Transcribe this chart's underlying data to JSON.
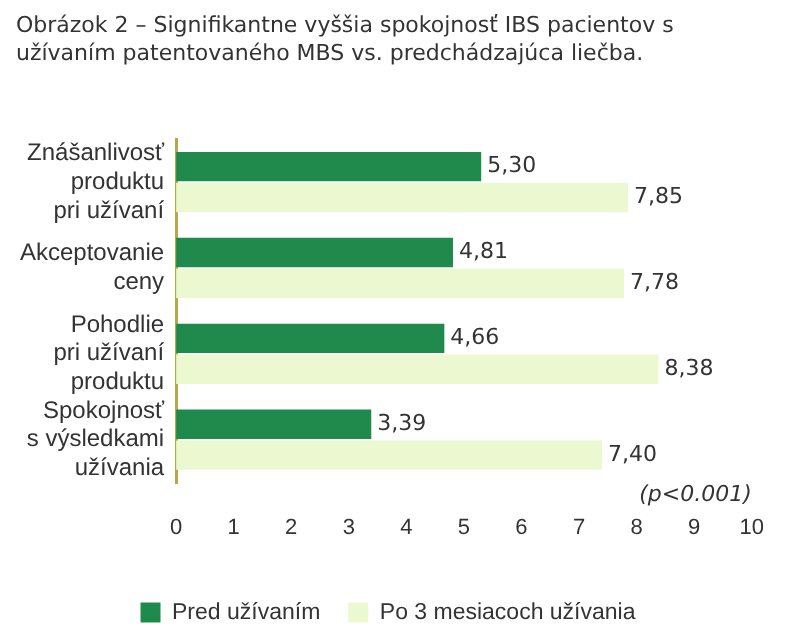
{
  "chart_data": {
    "type": "bar",
    "orientation": "horizontal",
    "title": "Obrázok 2 – Signifikantne vyššia spokojnosť IBS pacientov s užívaním patentovaného MBS vs. predchádzajúca liečba.",
    "categories": [
      "Znášanlivosť\nproduktu\npri užívaní",
      "Akceptovanie\nceny",
      "Pohodlie\npri užívaní\nproduktu",
      "Spokojnosť\ns výsledkami\nužívania"
    ],
    "series": [
      {
        "name": "Pred užívaním",
        "color": "#1f8a4c",
        "values": [
          5.3,
          4.81,
          4.66,
          3.39
        ],
        "value_labels": [
          "5,30",
          "4,81",
          "4,66",
          "3,39"
        ]
      },
      {
        "name": "Po 3 mesiacoch užívania",
        "color": "#ecf8cf",
        "values": [
          7.85,
          7.78,
          8.38,
          7.4
        ],
        "value_labels": [
          "7,85",
          "7,78",
          "8,38",
          "7,40"
        ]
      }
    ],
    "xlim": [
      0,
      10
    ],
    "xticks": [
      0,
      1,
      2,
      3,
      4,
      5,
      6,
      7,
      8,
      9,
      10
    ],
    "grid": false,
    "legend": "bottom",
    "annotations": [
      "(p<0.001)"
    ]
  }
}
